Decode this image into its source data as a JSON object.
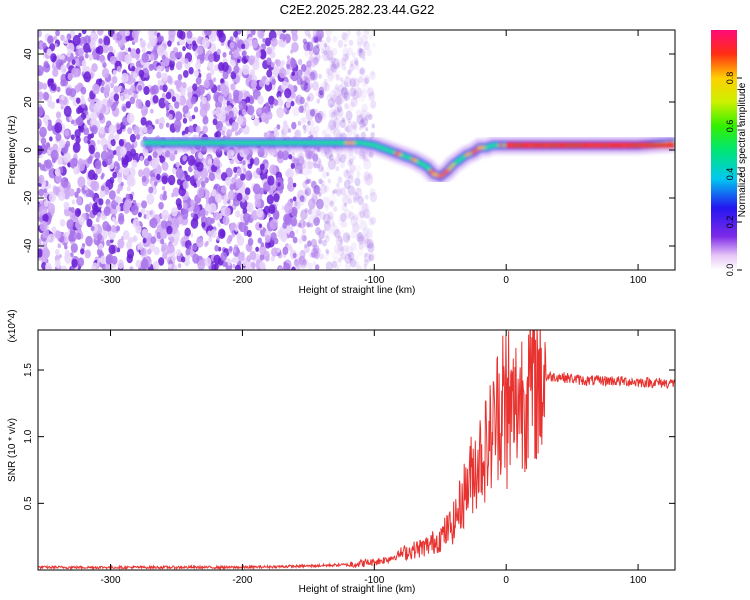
{
  "figure_title": "C2E2.2025.282.23.44.G22",
  "chart_data": [
    {
      "type": "heatmap",
      "title": "C2E2.2025.282.23.44.G22",
      "xlabel": "Height of straight line (km)",
      "ylabel": "Frequency (Hz)",
      "xlim": [
        -355,
        128
      ],
      "ylim": [
        -50,
        50
      ],
      "xticks": [
        -300,
        -200,
        -100,
        0,
        100
      ],
      "yticks": [
        -40,
        -20,
        0,
        20,
        40
      ],
      "colorbar": {
        "label": "Normalized spectral amplitude",
        "range": [
          0,
          1
        ],
        "ticks": [
          0.0,
          0.2,
          0.4,
          0.6,
          0.8
        ]
      },
      "ridge": {
        "x": [
          -275,
          -250,
          -200,
          -160,
          -140,
          -120,
          -110,
          -100,
          -90,
          -80,
          -70,
          -60,
          -55,
          -50,
          -45,
          -40,
          -35,
          -30,
          -25,
          -20,
          -15,
          -10,
          -5,
          0,
          10,
          50,
          100,
          128
        ],
        "y": [
          3,
          3,
          3,
          3,
          3,
          3,
          3,
          2,
          0,
          -2,
          -4,
          -7,
          -10,
          -11,
          -9,
          -6,
          -4,
          -2,
          -1,
          1,
          1,
          2,
          2,
          2,
          2,
          2,
          2,
          3
        ]
      },
      "noise_region_x": [
        -355,
        -130
      ]
    },
    {
      "type": "line",
      "xlabel": "Height of straight line (km)",
      "ylabel": "SNR (10 * v/v)",
      "y_multiplier": "(x10^4)",
      "xlim": [
        -355,
        128
      ],
      "ylim": [
        0,
        1.8
      ],
      "xticks": [
        -300,
        -200,
        -100,
        0,
        100
      ],
      "yticks": [
        0.5,
        1.0,
        1.5
      ],
      "color": "#e8322f",
      "series": [
        {
          "name": "SNR",
          "x": [
            -355,
            -300,
            -250,
            -200,
            -150,
            -120,
            -100,
            -90,
            -80,
            -70,
            -60,
            -50,
            -40,
            -35,
            -30,
            -25,
            -20,
            -15,
            -10,
            -5,
            0,
            5,
            10,
            20,
            30,
            40,
            60,
            80,
            100,
            128
          ],
          "y": [
            0.02,
            0.02,
            0.02,
            0.02,
            0.03,
            0.04,
            0.06,
            0.08,
            0.12,
            0.15,
            0.18,
            0.24,
            0.35,
            0.48,
            0.62,
            0.75,
            0.85,
            0.92,
            1.05,
            1.25,
            1.05,
            1.2,
            1.3,
            1.38,
            1.45,
            1.45,
            1.42,
            1.42,
            1.41,
            1.4
          ]
        }
      ]
    }
  ]
}
